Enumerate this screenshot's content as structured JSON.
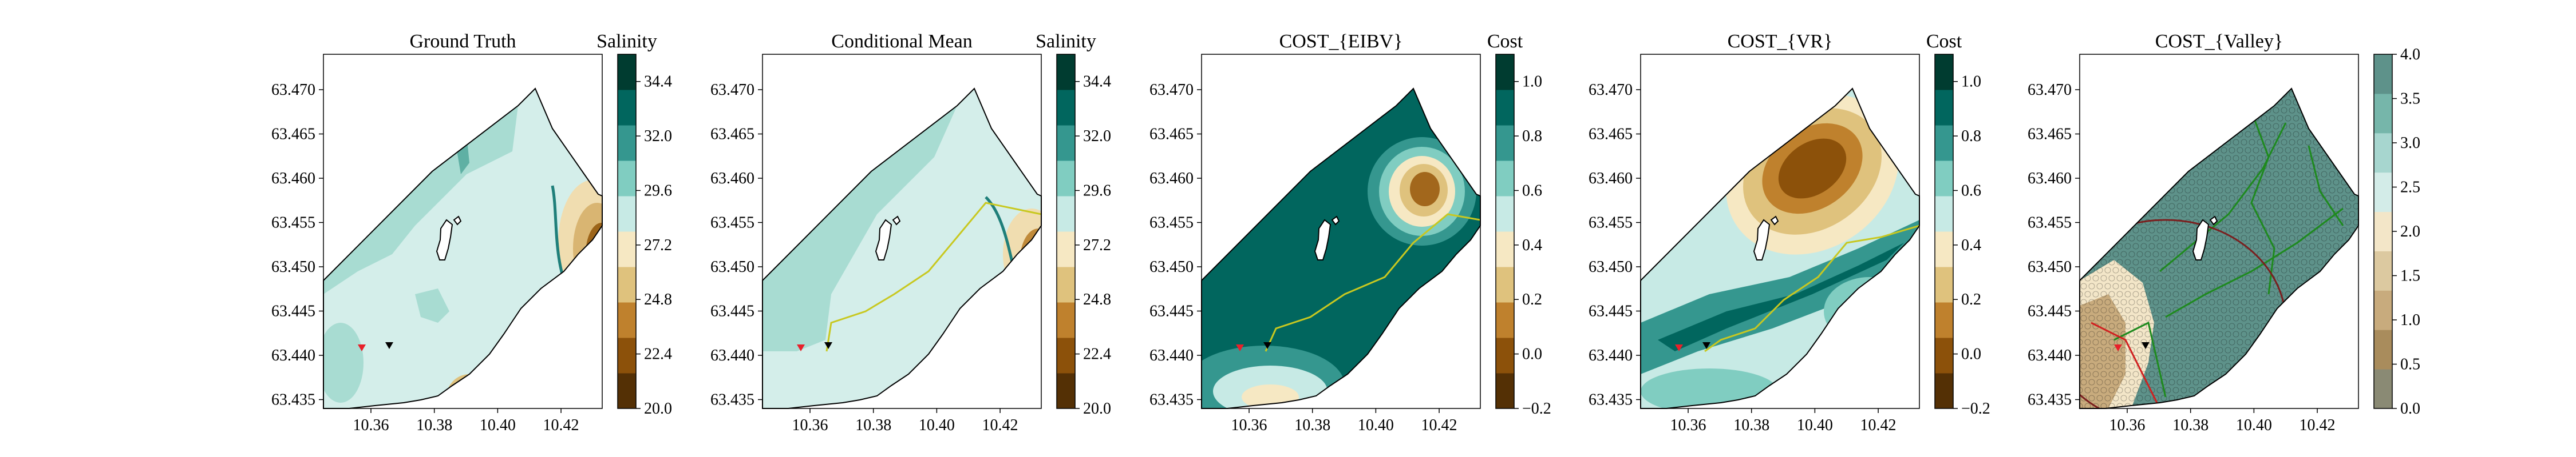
{
  "figure": {
    "panels": [
      {
        "title": "Ground Truth",
        "colorbar": {
          "label": "Salinity",
          "ticks": [
            "20.0",
            "22.4",
            "24.8",
            "27.2",
            "29.6",
            "32.0",
            "34.4"
          ],
          "range": [
            20.0,
            35.6
          ],
          "palette": "BrBG"
        },
        "x_ticks": [
          "10.36",
          "10.38",
          "10.40",
          "10.42"
        ],
        "y_ticks": [
          "63.435",
          "63.440",
          "63.445",
          "63.450",
          "63.455",
          "63.460",
          "63.465",
          "63.470"
        ]
      },
      {
        "title": "Conditional Mean",
        "colorbar": {
          "label": "Salinity",
          "ticks": [
            "20.0",
            "22.4",
            "24.8",
            "27.2",
            "29.6",
            "32.0",
            "34.4"
          ],
          "range": [
            20.0,
            35.6
          ],
          "palette": "BrBG"
        },
        "x_ticks": [
          "10.36",
          "10.38",
          "10.40",
          "10.42"
        ],
        "y_ticks": [
          "63.435",
          "63.440",
          "63.445",
          "63.450",
          "63.455",
          "63.460",
          "63.465",
          "63.470"
        ]
      },
      {
        "title": "COST_{EIBV}",
        "colorbar": {
          "label": "Cost",
          "ticks": [
            "−0.2",
            "0.0",
            "0.2",
            "0.4",
            "0.6",
            "0.8",
            "1.0"
          ],
          "range": [
            -0.2,
            1.1
          ],
          "palette": "BrBG"
        },
        "x_ticks": [
          "10.36",
          "10.38",
          "10.40",
          "10.42"
        ],
        "y_ticks": [
          "63.435",
          "63.440",
          "63.445",
          "63.450",
          "63.455",
          "63.460",
          "63.465",
          "63.470"
        ]
      },
      {
        "title": "COST_{VR}",
        "colorbar": {
          "label": "Cost",
          "ticks": [
            "−0.2",
            "0.0",
            "0.2",
            "0.4",
            "0.6",
            "0.8",
            "1.0"
          ],
          "range": [
            -0.2,
            1.1
          ],
          "palette": "BrBG"
        },
        "x_ticks": [
          "10.36",
          "10.38",
          "10.40",
          "10.42"
        ],
        "y_ticks": [
          "63.435",
          "63.440",
          "63.445",
          "63.450",
          "63.455",
          "63.460",
          "63.465",
          "63.470"
        ]
      },
      {
        "title": "COST_{Valley}",
        "colorbar": {
          "label": "",
          "ticks": [
            "0.0",
            "0.5",
            "1.0",
            "1.5",
            "2.0",
            "2.5",
            "3.0",
            "3.5",
            "4.0"
          ],
          "range": [
            0.0,
            4.0
          ],
          "palette": "BrBG-muted"
        },
        "x_ticks": [
          "10.36",
          "10.38",
          "10.40",
          "10.42"
        ],
        "y_ticks": [
          "63.435",
          "63.440",
          "63.445",
          "63.450",
          "63.455",
          "63.460",
          "63.465",
          "63.470"
        ]
      }
    ]
  },
  "chart_data": [
    {
      "type": "heatmap",
      "title": "Ground Truth",
      "colorbar_label": "Salinity",
      "xlim": [
        10.345,
        10.433
      ],
      "ylim": [
        63.434,
        63.474
      ]
    },
    {
      "type": "heatmap",
      "title": "Conditional Mean",
      "colorbar_label": "Salinity",
      "xlim": [
        10.345,
        10.433
      ],
      "ylim": [
        63.434,
        63.474
      ]
    },
    {
      "type": "heatmap",
      "title": "COST_{EIBV}",
      "colorbar_label": "Cost",
      "xlim": [
        10.345,
        10.433
      ],
      "ylim": [
        63.434,
        63.474
      ]
    },
    {
      "type": "heatmap",
      "title": "COST_{VR}",
      "colorbar_label": "Cost",
      "xlim": [
        10.345,
        10.433
      ],
      "ylim": [
        63.434,
        63.474
      ]
    },
    {
      "type": "heatmap",
      "title": "COST_{Valley}",
      "colorbar_label": "",
      "xlim": [
        10.345,
        10.433
      ],
      "ylim": [
        63.434,
        63.474
      ]
    }
  ],
  "colors": {
    "land": "#ffffff",
    "boundary": "#000000",
    "path": "#c8c820",
    "start_marker": "#e8202a",
    "current_marker": "#000000",
    "contour_line": "#1f7f7a"
  }
}
